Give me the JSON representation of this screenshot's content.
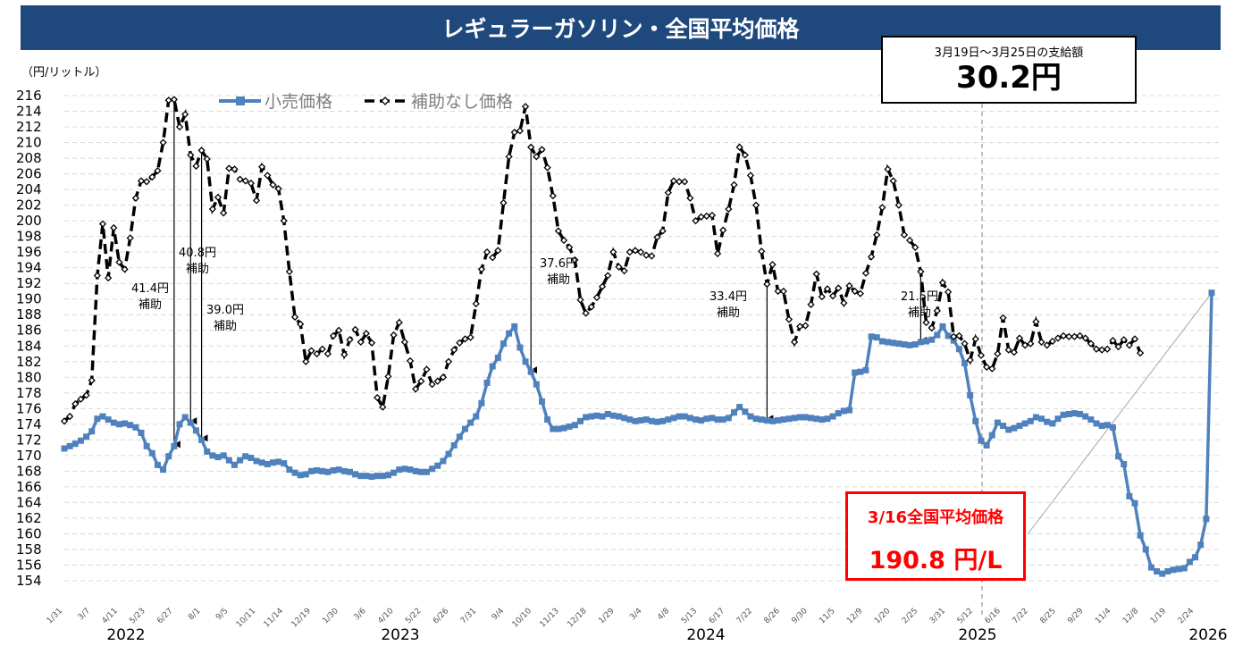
{
  "title": "レギュラーガソリン・全国平均価格",
  "unit_label": "（円/リットル）",
  "info_box": {
    "label": "3月19日～3月25日の支給額",
    "value": "30.2円"
  },
  "price_box": {
    "label": "3/16全国平均価格",
    "value": "190.8 円/L"
  },
  "colors": {
    "retail": "#4f81bd",
    "nosubsidy": "#000000",
    "title_bg": "#1f497d",
    "highlight": "#ff0000",
    "grid": "#d9d9d9"
  },
  "chart_data": {
    "type": "line",
    "ylim": [
      154,
      216
    ],
    "y_ticks": [
      154,
      156,
      158,
      160,
      162,
      164,
      166,
      168,
      170,
      172,
      174,
      176,
      178,
      180,
      182,
      184,
      186,
      188,
      190,
      192,
      194,
      196,
      198,
      200,
      202,
      204,
      206,
      208,
      210,
      212,
      214,
      216
    ],
    "x_tick_labels": [
      "1/31",
      "3/7",
      "4/11",
      "5/23",
      "6/27",
      "8/1",
      "9/5",
      "10/11",
      "11/14",
      "12/19",
      "1/30",
      "3/6",
      "4/10",
      "5/22",
      "6/26",
      "7/31",
      "9/4",
      "10/10",
      "11/13",
      "12/18",
      "1/29",
      "3/4",
      "4/8",
      "5/13",
      "6/17",
      "7/22",
      "8/26",
      "9/30",
      "11/5",
      "12/9",
      "1/20",
      "2/25",
      "3/31",
      "5/12",
      "6/16",
      "7/22",
      "8/25",
      "9/29",
      "11/4",
      "12/8",
      "1/19",
      "2/24"
    ],
    "year_labels": [
      "2022",
      "2023",
      "2024",
      "2025",
      "2026"
    ],
    "series": [
      {
        "name": "小売価格",
        "values": [
          170.9,
          171.2,
          171.5,
          171.9,
          172.4,
          173.1,
          174.7,
          175.0,
          174.6,
          174.2,
          174.0,
          174.1,
          173.9,
          173.6,
          172.9,
          171.2,
          170.3,
          168.8,
          168.2,
          169.9,
          171.2,
          174.0,
          174.9,
          174.2,
          173.2,
          172.0,
          170.5,
          170.0,
          169.8,
          170.0,
          169.4,
          168.8,
          169.4,
          169.9,
          169.7,
          169.3,
          169.1,
          168.9,
          169.1,
          169.2,
          169.0,
          168.2,
          167.8,
          167.5,
          167.6,
          168.0,
          168.1,
          168.0,
          167.9,
          168.1,
          168.2,
          168.0,
          167.9,
          167.6,
          167.4,
          167.4,
          167.3,
          167.4,
          167.4,
          167.5,
          167.8,
          168.2,
          168.3,
          168.2,
          168.0,
          167.9,
          167.9,
          168.3,
          168.7,
          169.3,
          170.2,
          171.3,
          172.4,
          173.4,
          174.2,
          175.0,
          176.7,
          179.3,
          181.4,
          182.5,
          184.3,
          185.6,
          186.5,
          183.8,
          182.0,
          180.7,
          179.1,
          176.9,
          174.6,
          173.4,
          173.4,
          173.5,
          173.7,
          173.9,
          174.4,
          174.9,
          175.0,
          175.1,
          175.0,
          175.3,
          175.1,
          175.0,
          174.8,
          174.6,
          174.4,
          174.5,
          174.6,
          174.4,
          174.3,
          174.4,
          174.6,
          174.8,
          175.0,
          175.0,
          174.8,
          174.6,
          174.5,
          174.7,
          174.8,
          174.6,
          174.6,
          174.8,
          175.5,
          176.2,
          175.6,
          175.0,
          174.7,
          174.6,
          174.5,
          174.4,
          174.5,
          174.6,
          174.7,
          174.8,
          174.9,
          174.9,
          174.8,
          174.7,
          174.6,
          174.7,
          175.0,
          175.4,
          175.7,
          175.8,
          180.6,
          180.7,
          180.9,
          185.2,
          185.1,
          184.6,
          184.5,
          184.4,
          184.3,
          184.2,
          184.1,
          184.2,
          184.5,
          184.6,
          184.8,
          185.4,
          186.5,
          185.3,
          184.7,
          183.6,
          181.8,
          177.7,
          174.4,
          171.9,
          171.3,
          172.6,
          174.2,
          173.8,
          173.3,
          173.5,
          173.8,
          174.1,
          174.4,
          174.9,
          174.7,
          174.3,
          174.1,
          174.7,
          175.2,
          175.3,
          175.4,
          175.3,
          175.0,
          174.6,
          174.1,
          173.8,
          173.9,
          173.6,
          169.9,
          168.9,
          164.8,
          163.9,
          159.8,
          158.0,
          155.7,
          155.2,
          154.9,
          155.2,
          155.4,
          155.5,
          155.6,
          156.4,
          157.0,
          158.6,
          161.9,
          190.8
        ]
      },
      {
        "name": "補助なし価格",
        "values": [
          174.4,
          175.0,
          176.6,
          177.2,
          177.7,
          179.6,
          193.0,
          199.6,
          192.7,
          199.1,
          194.7,
          193.8,
          197.8,
          202.9,
          205.1,
          205.0,
          205.6,
          206.4,
          210.0,
          215.4,
          215.5,
          212.0,
          213.6,
          208.4,
          207.0,
          209.0,
          207.9,
          201.5,
          203.0,
          201.0,
          206.7,
          206.6,
          205.3,
          205.1,
          204.8,
          202.6,
          206.9,
          205.8,
          204.6,
          204.1,
          200.0,
          193.5,
          187.7,
          186.8,
          182.0,
          183.4,
          183.0,
          183.6,
          183.0,
          185.3,
          186.0,
          182.9,
          184.8,
          186.1,
          184.5,
          185.6,
          184.4,
          177.4,
          176.2,
          180.1,
          185.4,
          187.0,
          184.5,
          182.1,
          178.5,
          179.5,
          181.0,
          179.1,
          179.5,
          180.0,
          182.0,
          183.5,
          184.4,
          184.9,
          185.1,
          189.4,
          193.8,
          196.0,
          195.3,
          196.2,
          202.3,
          208.2,
          211.3,
          211.5,
          214.6,
          209.4,
          208.2,
          209.1,
          206.8,
          203.2,
          198.7,
          197.5,
          196.6,
          195.0,
          189.9,
          188.2,
          189.0,
          190.2,
          191.6,
          193.0,
          196.0,
          194.1,
          193.6,
          196.0,
          196.2,
          196.0,
          195.6,
          195.5,
          197.9,
          198.7,
          203.6,
          205.1,
          205.0,
          205.0,
          202.9,
          200.0,
          200.5,
          200.6,
          200.7,
          195.8,
          198.8,
          201.5,
          204.6,
          209.4,
          208.4,
          205.8,
          202.0,
          196.1,
          191.9,
          194.4,
          191.0,
          191.0,
          187.4,
          184.5,
          186.5,
          186.6,
          189.3,
          193.2,
          190.3,
          191.3,
          190.4,
          191.4,
          189.5,
          191.7,
          191.0,
          190.7,
          193.3,
          195.4,
          198.2,
          201.7,
          206.6,
          205.1,
          202.0,
          198.2,
          197.5,
          196.6,
          193.5,
          187.0,
          186.3,
          188.5,
          192.1,
          190.9,
          185.2,
          185.3,
          184.3,
          182.2,
          184.9,
          182.8,
          181.3,
          181.1,
          183.0,
          187.6,
          183.5,
          183.2,
          185.0,
          184.1,
          184.3,
          187.1,
          184.5,
          184.1,
          184.6,
          185.0,
          185.3,
          185.2,
          185.2,
          185.3,
          185.0,
          184.3,
          183.6,
          183.5,
          183.6,
          184.7,
          183.9,
          184.8,
          184.1,
          184.9,
          183.1
        ]
      }
    ],
    "annotations": [
      {
        "label": "41.4円",
        "sub": "補助"
      },
      {
        "label": "40.8円",
        "sub": "補助"
      },
      {
        "label": "39.0円",
        "sub": "補助"
      },
      {
        "label": "37.6円",
        "sub": "補助"
      },
      {
        "label": "33.4円",
        "sub": "補助"
      },
      {
        "label": "21.5円",
        "sub": "補助"
      }
    ]
  }
}
